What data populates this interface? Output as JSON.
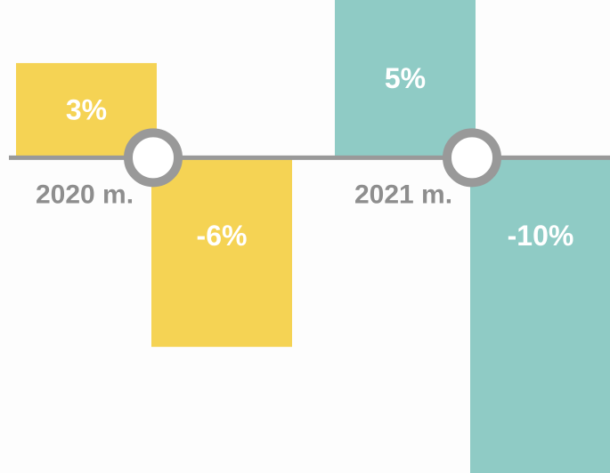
{
  "chart_data": {
    "type": "bar",
    "categories": [
      "2020 m.",
      "2021 m."
    ],
    "colors": [
      "#f5d354",
      "#8fcbc5"
    ],
    "series": [
      {
        "values": [
          3,
          5
        ],
        "value_labels": [
          "3%",
          "5%"
        ]
      },
      {
        "values": [
          -6,
          -10
        ],
        "value_labels": [
          "-6%",
          "-10%"
        ]
      }
    ],
    "ylim": [
      -10,
      5
    ]
  }
}
